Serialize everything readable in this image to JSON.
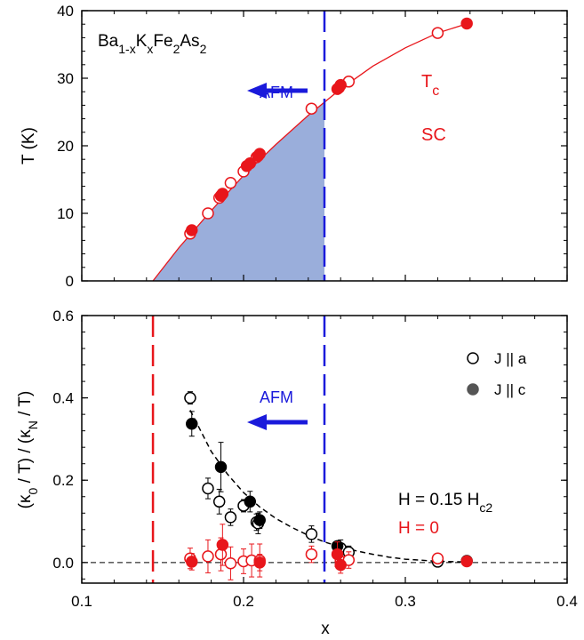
{
  "chart_data": [
    {
      "type": "scatter",
      "title": "",
      "compound": {
        "base": "Ba",
        "sub1": "1-x",
        "k": "K",
        "sub2": "x",
        "mid": "Fe",
        "sub3": "2",
        "end": "As",
        "sub4": "2"
      },
      "xlabel": "",
      "ylabel": "T (K)",
      "xlim": [
        0.1,
        0.4
      ],
      "ylim": [
        0,
        40
      ],
      "x_ticks": [
        0.1,
        0.2,
        0.3,
        0.4
      ],
      "y_ticks": [
        0,
        10,
        20,
        30,
        40
      ],
      "annotations": {
        "afm": "AFM",
        "tc_main": "T",
        "tc_sub": "c",
        "sc": "SC"
      },
      "afm_boundary_x": 0.25,
      "afm_region_color": "#9aaedb",
      "tc_curve_color": "#e8161b",
      "tc_curve": {
        "x": [
          0.144,
          0.16,
          0.18,
          0.2,
          0.22,
          0.24,
          0.26,
          0.28,
          0.3,
          0.32,
          0.34
        ],
        "y": [
          0,
          4.9,
          10.4,
          15.6,
          20.2,
          24.5,
          28.4,
          31.8,
          34.5,
          36.7,
          38.2
        ]
      },
      "series": [
        {
          "name": "open",
          "marker": "open",
          "color": "#e8161b",
          "x": [
            0.167,
            0.178,
            0.185,
            0.192,
            0.2,
            0.208,
            0.242,
            0.265,
            0.32
          ],
          "y": [
            7.0,
            10.0,
            12.3,
            14.5,
            16.2,
            18.3,
            25.5,
            29.5,
            36.7
          ]
        },
        {
          "name": "filled",
          "marker": "filled",
          "color": "#e8161b",
          "x": [
            0.168,
            0.186,
            0.187,
            0.202,
            0.204,
            0.209,
            0.21,
            0.258,
            0.259,
            0.26,
            0.338
          ],
          "y": [
            7.5,
            12.6,
            12.9,
            17.0,
            17.4,
            18.5,
            18.8,
            28.4,
            28.6,
            29.0,
            38.1
          ]
        }
      ]
    },
    {
      "type": "scatter",
      "title": "",
      "xlabel": "x",
      "ylabel": "(κ0 / T) / (κN / T)",
      "ylabel_parts": {
        "open1": "(κ",
        "sub1": "0",
        "mid": " / T) / (κ",
        "sub2": "N",
        "end": " / T)"
      },
      "xlim": [
        0.1,
        0.4
      ],
      "ylim": [
        -0.05,
        0.6
      ],
      "x_ticks": [
        0.1,
        0.2,
        0.3,
        0.4
      ],
      "y_ticks": [
        0.0,
        0.2,
        0.4,
        0.6
      ],
      "x_tick_labels": [
        "0.1",
        "0.2",
        "0.3",
        "0.4"
      ],
      "y_tick_labels": [
        "0.0",
        "0.2",
        "0.4",
        "0.6"
      ],
      "annotations": {
        "afm": "AFM",
        "h_field_main": "H = 0.15 H",
        "h_field_sub": "c2",
        "h_zero": "H = 0"
      },
      "vlines": [
        {
          "x": 0.144,
          "color": "#e8161b"
        },
        {
          "x": 0.25,
          "color": "#1a1adb"
        }
      ],
      "legend": {
        "position": "top-right",
        "entries": [
          "J || a",
          "J || c"
        ]
      },
      "guide_curve": {
        "x": [
          0.167,
          0.18,
          0.19,
          0.2,
          0.21,
          0.22,
          0.23,
          0.24,
          0.25,
          0.26,
          0.27,
          0.28,
          0.29,
          0.3,
          0.32,
          0.34
        ],
        "y": [
          0.37,
          0.27,
          0.215,
          0.17,
          0.135,
          0.107,
          0.085,
          0.066,
          0.05,
          0.038,
          0.028,
          0.02,
          0.013,
          0.008,
          0.003,
          0.001
        ]
      },
      "series": [
        {
          "name": "J || a",
          "marker": "open",
          "color": "#000000",
          "x": [
            0.167,
            0.178,
            0.185,
            0.192,
            0.2,
            0.208,
            0.209,
            0.242,
            0.26,
            0.265,
            0.32
          ],
          "y": [
            0.4,
            0.18,
            0.148,
            0.11,
            0.138,
            0.098,
            0.095,
            0.069,
            0.035,
            0.025,
            0.002
          ],
          "err": [
            0.015,
            0.025,
            0.03,
            0.02,
            0.015,
            0.02,
            0.025,
            0.02,
            0.02,
            0.015,
            0.005
          ]
        },
        {
          "name": "J || c",
          "marker": "filled",
          "color": "#000000",
          "x": [
            0.168,
            0.186,
            0.204,
            0.21,
            0.258,
            0.338
          ],
          "y": [
            0.337,
            0.232,
            0.148,
            0.103,
            0.04,
            0.004
          ],
          "err": [
            0.03,
            0.06,
            0.025,
            0.02,
            0.01,
            0.005
          ]
        },
        {
          "name": "H = 0 open",
          "marker": "open",
          "color": "#e8161b",
          "x": [
            0.167,
            0.178,
            0.186,
            0.192,
            0.2,
            0.205,
            0.21,
            0.242,
            0.26,
            0.265,
            0.32
          ],
          "y": [
            0.01,
            0.015,
            0.02,
            -0.002,
            0.003,
            0.005,
            0.005,
            0.02,
            0.003,
            0.006,
            0.01
          ],
          "err": [
            0.025,
            0.04,
            0.04,
            0.04,
            0.03,
            0.04,
            0.04,
            0.02,
            0.02,
            0.02,
            0.01
          ]
        },
        {
          "name": "H = 0 filled",
          "marker": "filled",
          "color": "#e8161b",
          "x": [
            0.168,
            0.187,
            0.21,
            0.258,
            0.26,
            0.338
          ],
          "y": [
            0.002,
            0.043,
            0.0,
            0.02,
            -0.006,
            0.003
          ],
          "err": [
            0.02,
            0.05,
            0.02,
            0.03,
            0.02,
            0.005
          ]
        }
      ]
    }
  ]
}
